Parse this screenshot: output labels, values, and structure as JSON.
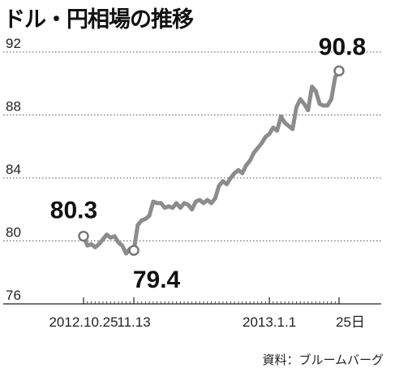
{
  "title": "ドル・円相場の推移",
  "source": "資料：ブルームバーグ",
  "chart_data": {
    "type": "line",
    "title": "ドル・円相場の推移",
    "xlabel": "",
    "ylabel": "",
    "ylim": [
      76,
      92
    ],
    "yticks": [
      92,
      88,
      84,
      80,
      76
    ],
    "grid": "horizontal",
    "x_tick_labels": [
      "2012.10.25",
      "11.13",
      "2013.1.1",
      "25日"
    ],
    "series": [
      {
        "color": "#8c8c8c",
        "x": [
          "2012.10.25",
          "10.26",
          "10.29",
          "10.30",
          "10.31",
          "11.1",
          "11.2",
          "11.5",
          "11.6",
          "11.7",
          "11.8",
          "11.9",
          "11.12",
          "11.13",
          "11.14",
          "11.15",
          "11.16",
          "11.19",
          "11.20",
          "11.21",
          "11.22",
          "11.23",
          "11.26",
          "11.27",
          "11.28",
          "11.29",
          "11.30",
          "12.3",
          "12.4",
          "12.5",
          "12.6",
          "12.7",
          "12.10",
          "12.11",
          "12.12",
          "12.13",
          "12.14",
          "12.17",
          "12.18",
          "12.19",
          "12.20",
          "12.21",
          "12.24",
          "12.25",
          "12.26",
          "12.27",
          "12.28",
          "12.31",
          "2013.1.1",
          "1.2",
          "1.3",
          "1.4",
          "1.7",
          "1.8",
          "1.9",
          "1.10",
          "1.11",
          "1.14",
          "1.15",
          "1.16",
          "1.17",
          "1.18",
          "1.21",
          "1.22",
          "1.23",
          "1.24",
          "25日"
        ],
        "values": [
          80.3,
          79.7,
          79.8,
          79.6,
          79.8,
          80.1,
          80.4,
          80.2,
          80.3,
          79.9,
          79.7,
          79.2,
          79.5,
          79.4,
          81.0,
          81.3,
          81.4,
          81.6,
          82.5,
          82.4,
          82.4,
          82.1,
          82.2,
          82.1,
          82.4,
          82.1,
          82.4,
          82.3,
          82.0,
          82.5,
          82.6,
          82.4,
          82.6,
          82.4,
          82.7,
          83.5,
          83.8,
          83.6,
          84.0,
          84.3,
          84.5,
          84.3,
          84.8,
          85.1,
          85.6,
          85.9,
          86.2,
          86.6,
          86.8,
          87.2,
          87.0,
          87.9,
          87.5,
          87.3,
          87.1,
          88.5,
          89.0,
          88.7,
          88.3,
          89.8,
          89.5,
          88.7,
          88.6,
          88.6,
          89.0,
          90.4,
          90.8
        ]
      }
    ],
    "annotations": [
      {
        "label": "80.3",
        "x": "2012.10.25",
        "value": 80.3
      },
      {
        "label": "79.4",
        "x": "11.13",
        "value": 79.4
      },
      {
        "label": "90.8",
        "x": "25日",
        "value": 90.8
      }
    ]
  }
}
